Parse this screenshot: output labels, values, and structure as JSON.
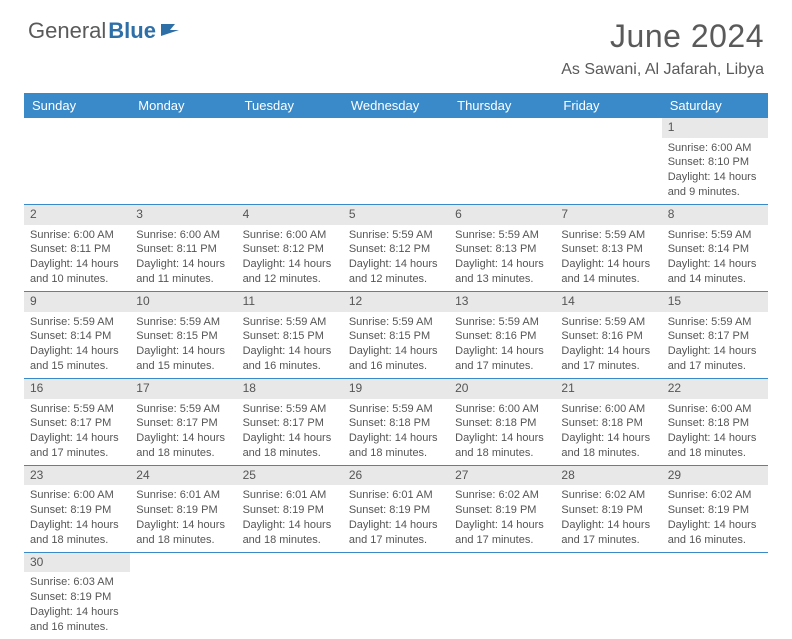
{
  "logo": {
    "text1": "General",
    "text2": "Blue"
  },
  "title": "June 2024",
  "location": "As Sawani, Al Jafarah, Libya",
  "colors": {
    "header_bg": "#3a8ac9",
    "header_text": "#ffffff",
    "daynum_bg": "#e8e8e8",
    "border": "#3a8ac9",
    "body_text": "#555555",
    "title_text": "#5a5a5a",
    "logo_blue": "#2f6fa8"
  },
  "fonts": {
    "title_size_pt": 24,
    "location_size_pt": 12,
    "header_size_pt": 10,
    "daynum_size_pt": 9,
    "body_size_pt": 8
  },
  "day_headers": [
    "Sunday",
    "Monday",
    "Tuesday",
    "Wednesday",
    "Thursday",
    "Friday",
    "Saturday"
  ],
  "weeks": [
    [
      {
        "num": "",
        "lines": []
      },
      {
        "num": "",
        "lines": []
      },
      {
        "num": "",
        "lines": []
      },
      {
        "num": "",
        "lines": []
      },
      {
        "num": "",
        "lines": []
      },
      {
        "num": "",
        "lines": []
      },
      {
        "num": "1",
        "lines": [
          "Sunrise: 6:00 AM",
          "Sunset: 8:10 PM",
          "Daylight: 14 hours",
          "and 9 minutes."
        ]
      }
    ],
    [
      {
        "num": "2",
        "lines": [
          "Sunrise: 6:00 AM",
          "Sunset: 8:11 PM",
          "Daylight: 14 hours",
          "and 10 minutes."
        ]
      },
      {
        "num": "3",
        "lines": [
          "Sunrise: 6:00 AM",
          "Sunset: 8:11 PM",
          "Daylight: 14 hours",
          "and 11 minutes."
        ]
      },
      {
        "num": "4",
        "lines": [
          "Sunrise: 6:00 AM",
          "Sunset: 8:12 PM",
          "Daylight: 14 hours",
          "and 12 minutes."
        ]
      },
      {
        "num": "5",
        "lines": [
          "Sunrise: 5:59 AM",
          "Sunset: 8:12 PM",
          "Daylight: 14 hours",
          "and 12 minutes."
        ]
      },
      {
        "num": "6",
        "lines": [
          "Sunrise: 5:59 AM",
          "Sunset: 8:13 PM",
          "Daylight: 14 hours",
          "and 13 minutes."
        ]
      },
      {
        "num": "7",
        "lines": [
          "Sunrise: 5:59 AM",
          "Sunset: 8:13 PM",
          "Daylight: 14 hours",
          "and 14 minutes."
        ]
      },
      {
        "num": "8",
        "lines": [
          "Sunrise: 5:59 AM",
          "Sunset: 8:14 PM",
          "Daylight: 14 hours",
          "and 14 minutes."
        ]
      }
    ],
    [
      {
        "num": "9",
        "lines": [
          "Sunrise: 5:59 AM",
          "Sunset: 8:14 PM",
          "Daylight: 14 hours",
          "and 15 minutes."
        ]
      },
      {
        "num": "10",
        "lines": [
          "Sunrise: 5:59 AM",
          "Sunset: 8:15 PM",
          "Daylight: 14 hours",
          "and 15 minutes."
        ]
      },
      {
        "num": "11",
        "lines": [
          "Sunrise: 5:59 AM",
          "Sunset: 8:15 PM",
          "Daylight: 14 hours",
          "and 16 minutes."
        ]
      },
      {
        "num": "12",
        "lines": [
          "Sunrise: 5:59 AM",
          "Sunset: 8:15 PM",
          "Daylight: 14 hours",
          "and 16 minutes."
        ]
      },
      {
        "num": "13",
        "lines": [
          "Sunrise: 5:59 AM",
          "Sunset: 8:16 PM",
          "Daylight: 14 hours",
          "and 17 minutes."
        ]
      },
      {
        "num": "14",
        "lines": [
          "Sunrise: 5:59 AM",
          "Sunset: 8:16 PM",
          "Daylight: 14 hours",
          "and 17 minutes."
        ]
      },
      {
        "num": "15",
        "lines": [
          "Sunrise: 5:59 AM",
          "Sunset: 8:17 PM",
          "Daylight: 14 hours",
          "and 17 minutes."
        ]
      }
    ],
    [
      {
        "num": "16",
        "lines": [
          "Sunrise: 5:59 AM",
          "Sunset: 8:17 PM",
          "Daylight: 14 hours",
          "and 17 minutes."
        ]
      },
      {
        "num": "17",
        "lines": [
          "Sunrise: 5:59 AM",
          "Sunset: 8:17 PM",
          "Daylight: 14 hours",
          "and 18 minutes."
        ]
      },
      {
        "num": "18",
        "lines": [
          "Sunrise: 5:59 AM",
          "Sunset: 8:17 PM",
          "Daylight: 14 hours",
          "and 18 minutes."
        ]
      },
      {
        "num": "19",
        "lines": [
          "Sunrise: 5:59 AM",
          "Sunset: 8:18 PM",
          "Daylight: 14 hours",
          "and 18 minutes."
        ]
      },
      {
        "num": "20",
        "lines": [
          "Sunrise: 6:00 AM",
          "Sunset: 8:18 PM",
          "Daylight: 14 hours",
          "and 18 minutes."
        ]
      },
      {
        "num": "21",
        "lines": [
          "Sunrise: 6:00 AM",
          "Sunset: 8:18 PM",
          "Daylight: 14 hours",
          "and 18 minutes."
        ]
      },
      {
        "num": "22",
        "lines": [
          "Sunrise: 6:00 AM",
          "Sunset: 8:18 PM",
          "Daylight: 14 hours",
          "and 18 minutes."
        ]
      }
    ],
    [
      {
        "num": "23",
        "lines": [
          "Sunrise: 6:00 AM",
          "Sunset: 8:19 PM",
          "Daylight: 14 hours",
          "and 18 minutes."
        ]
      },
      {
        "num": "24",
        "lines": [
          "Sunrise: 6:01 AM",
          "Sunset: 8:19 PM",
          "Daylight: 14 hours",
          "and 18 minutes."
        ]
      },
      {
        "num": "25",
        "lines": [
          "Sunrise: 6:01 AM",
          "Sunset: 8:19 PM",
          "Daylight: 14 hours",
          "and 18 minutes."
        ]
      },
      {
        "num": "26",
        "lines": [
          "Sunrise: 6:01 AM",
          "Sunset: 8:19 PM",
          "Daylight: 14 hours",
          "and 17 minutes."
        ]
      },
      {
        "num": "27",
        "lines": [
          "Sunrise: 6:02 AM",
          "Sunset: 8:19 PM",
          "Daylight: 14 hours",
          "and 17 minutes."
        ]
      },
      {
        "num": "28",
        "lines": [
          "Sunrise: 6:02 AM",
          "Sunset: 8:19 PM",
          "Daylight: 14 hours",
          "and 17 minutes."
        ]
      },
      {
        "num": "29",
        "lines": [
          "Sunrise: 6:02 AM",
          "Sunset: 8:19 PM",
          "Daylight: 14 hours",
          "and 16 minutes."
        ]
      }
    ],
    [
      {
        "num": "30",
        "lines": [
          "Sunrise: 6:03 AM",
          "Sunset: 8:19 PM",
          "Daylight: 14 hours",
          "and 16 minutes."
        ]
      },
      {
        "num": "",
        "lines": []
      },
      {
        "num": "",
        "lines": []
      },
      {
        "num": "",
        "lines": []
      },
      {
        "num": "",
        "lines": []
      },
      {
        "num": "",
        "lines": []
      },
      {
        "num": "",
        "lines": []
      }
    ]
  ]
}
